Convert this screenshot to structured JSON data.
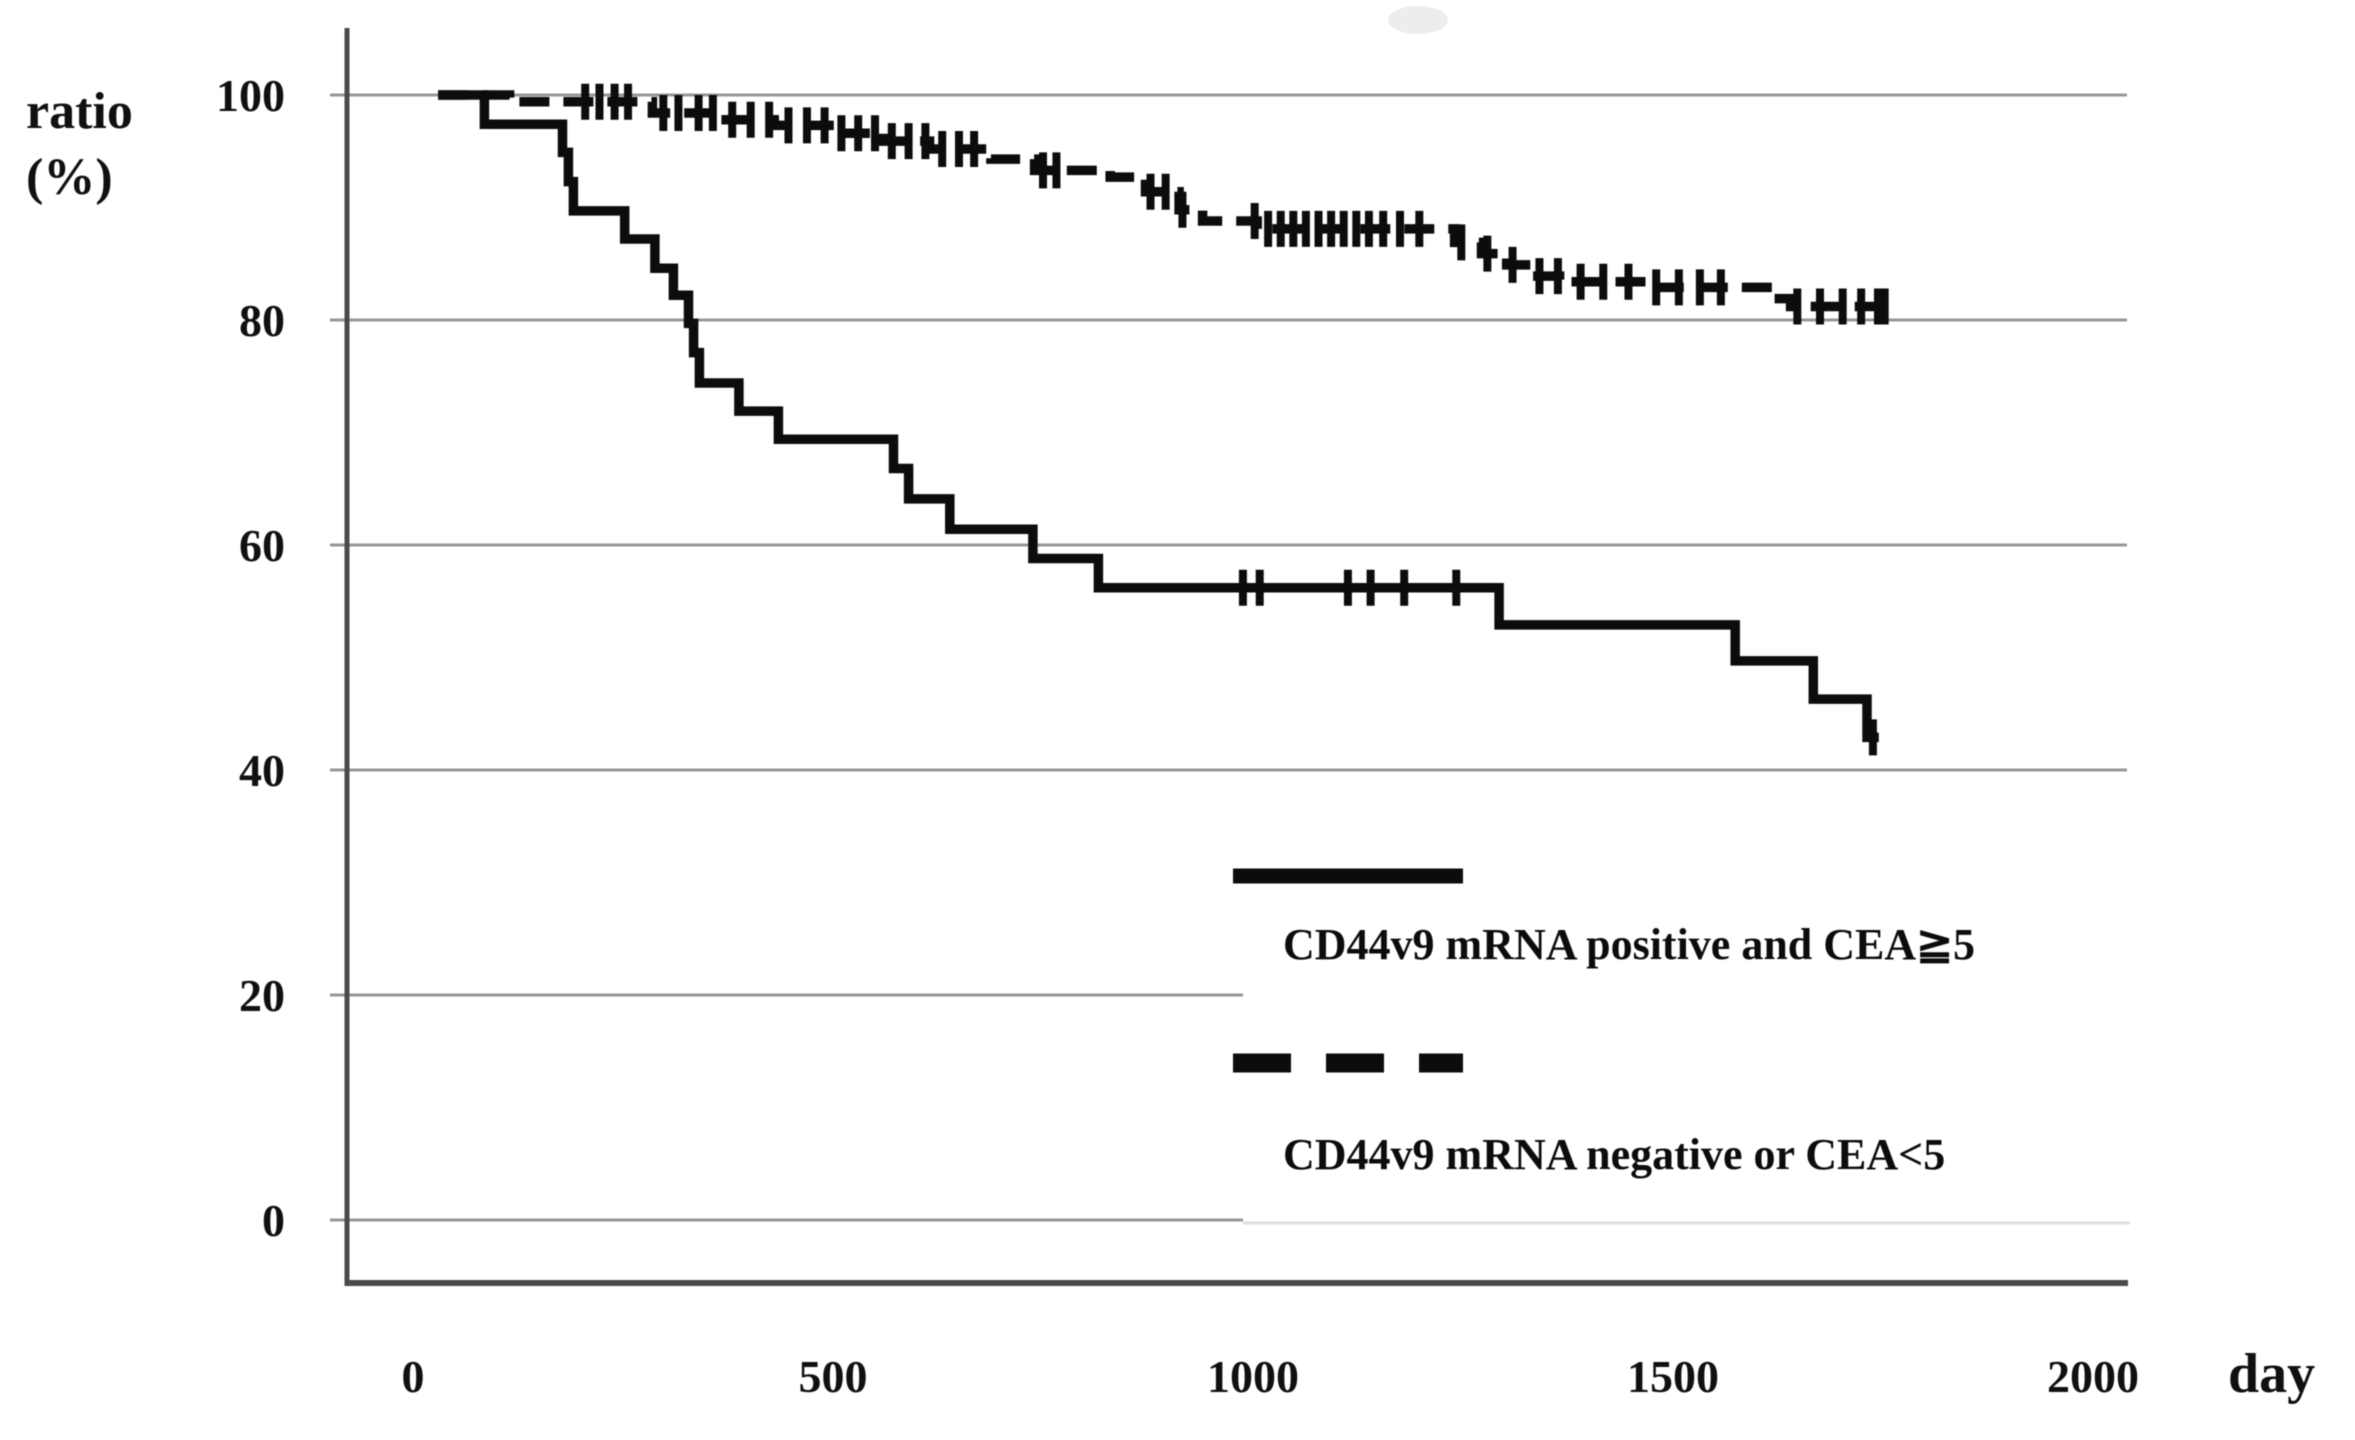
{
  "chart_data": {
    "type": "line",
    "subtype": "kaplan_meier_step_survival",
    "title": "",
    "xlabel": "day",
    "ylabel": "ratio (%)",
    "ylabel_line1": "ratio",
    "ylabel_line2": "(%)",
    "xlim": [
      0,
      2100
    ],
    "ylim": [
      0,
      100
    ],
    "x_ticks": [
      0,
      500,
      1000,
      1500,
      2000
    ],
    "y_ticks": [
      100,
      80,
      60,
      40,
      20,
      0
    ],
    "grid": "horizontal-only",
    "gridline_short_at": [
      20,
      0
    ],
    "legend_position": "inside-bottom-center",
    "colors": {
      "curve": "#0c0c0c",
      "gridline": "#979797",
      "faint_gridline": "#dedede",
      "axis": "#4a4a4a",
      "text": "#101010",
      "background": "#ffffff"
    },
    "series": [
      {
        "name": "CD44v9 mRNA positive and CEA≧5",
        "line_style": "solid",
        "steps": [
          [
            30,
            100
          ],
          [
            85,
            97.4
          ],
          [
            178,
            94.9
          ],
          [
            185,
            92.3
          ],
          [
            191,
            89.7
          ],
          [
            252,
            87.2
          ],
          [
            288,
            84.6
          ],
          [
            310,
            82.2
          ],
          [
            328,
            79.7
          ],
          [
            334,
            77.1
          ],
          [
            341,
            74.4
          ],
          [
            388,
            71.9
          ],
          [
            435,
            69.4
          ],
          [
            572,
            66.8
          ],
          [
            590,
            64.1
          ],
          [
            639,
            61.4
          ],
          [
            738,
            58.8
          ],
          [
            816,
            56.2
          ],
          [
            1293,
            52.9
          ],
          [
            1574,
            49.7
          ],
          [
            1667,
            46.3
          ],
          [
            1731,
            42.9
          ]
        ],
        "end_day": 1745,
        "censor_days": [
          988,
          1008,
          1113,
          1140,
          1180,
          1242,
          1738
        ]
      },
      {
        "name": "CD44v9 mRNA negative or CEA<5",
        "line_style": "dashed",
        "steps": [
          [
            30,
            100
          ],
          [
            115,
            99.4
          ],
          [
            285,
            98.4
          ],
          [
            360,
            97.8
          ],
          [
            430,
            97.3
          ],
          [
            505,
            96.6
          ],
          [
            560,
            95.9
          ],
          [
            615,
            95.2
          ],
          [
            688,
            94.3
          ],
          [
            740,
            93.3
          ],
          [
            830,
            92.7
          ],
          [
            872,
            91.4
          ],
          [
            912,
            89.8
          ],
          [
            940,
            88.8
          ],
          [
            1005,
            88.1
          ],
          [
            1240,
            86.9
          ],
          [
            1272,
            85.9
          ],
          [
            1302,
            84.9
          ],
          [
            1332,
            83.9
          ],
          [
            1365,
            83.4
          ],
          [
            1475,
            82.9
          ],
          [
            1612,
            81.9
          ],
          [
            1640,
            81.2
          ]
        ],
        "end_day": 1755,
        "censor_days": [
          205,
          222,
          240,
          256,
          298,
          316,
          340,
          357,
          380,
          402,
          424,
          447,
          469,
          490,
          510,
          530,
          550,
          570,
          590,
          610,
          630,
          650,
          668,
          750,
          766,
          878,
          896,
          916,
          1002,
          1018,
          1033,
          1048,
          1063,
          1078,
          1093,
          1108,
          1123,
          1138,
          1155,
          1175,
          1198,
          1248,
          1279,
          1309,
          1341,
          1363,
          1390,
          1417,
          1447,
          1480,
          1507,
          1532,
          1557,
          1648,
          1675,
          1702,
          1724,
          1744,
          1752
        ]
      }
    ]
  }
}
